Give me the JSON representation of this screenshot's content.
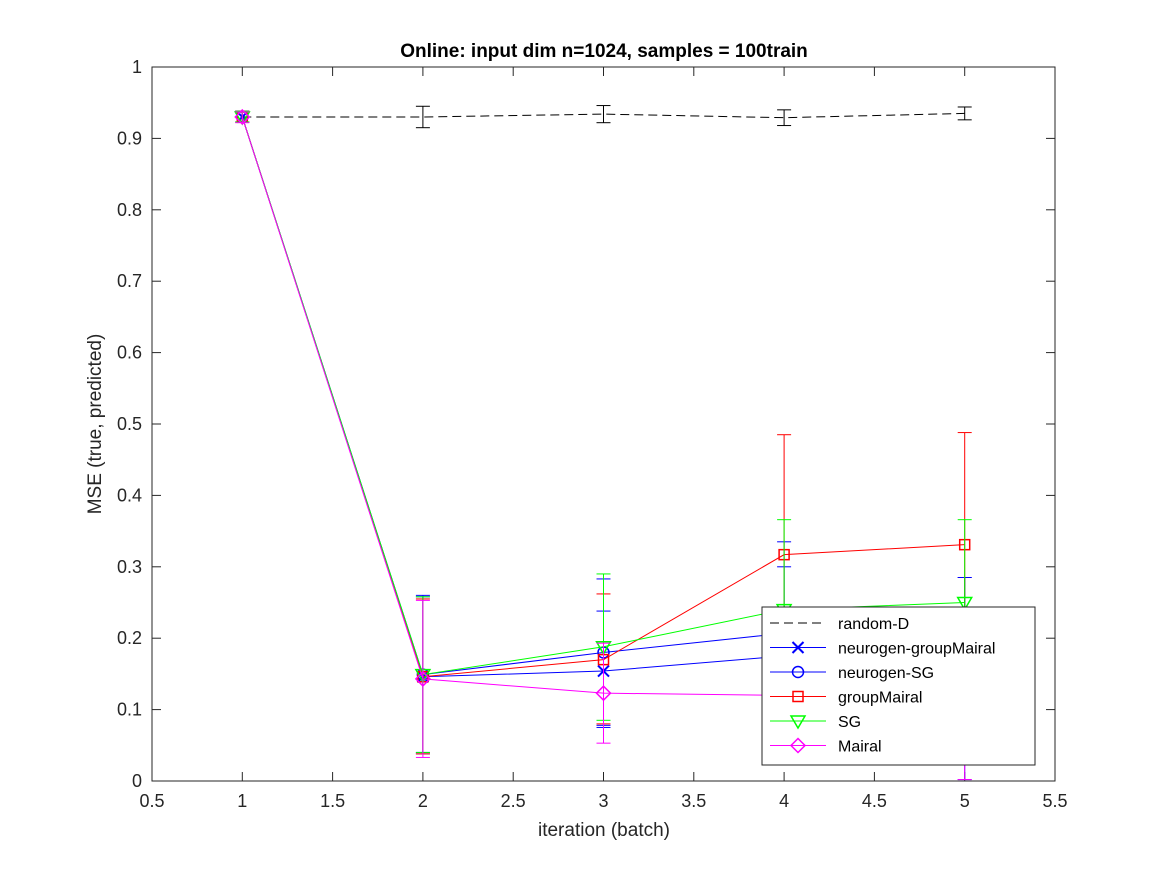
{
  "chart_data": {
    "type": "line",
    "title": "Online:  input dim n=1024, samples = 100train",
    "xlabel": "iteration (batch)",
    "ylabel": "MSE (true, predicted)",
    "xlim": [
      0.5,
      5.5
    ],
    "ylim": [
      0,
      1
    ],
    "xticks": [
      0.5,
      1,
      1.5,
      2,
      2.5,
      3,
      3.5,
      4,
      4.5,
      5,
      5.5
    ],
    "xtick_labels": [
      "0.5",
      "1",
      "1.5",
      "2",
      "2.5",
      "3",
      "3.5",
      "4",
      "4.5",
      "5",
      "5.5"
    ],
    "yticks": [
      0,
      0.1,
      0.2,
      0.3,
      0.4,
      0.5,
      0.6,
      0.7,
      0.8,
      0.9,
      1
    ],
    "ytick_labels": [
      "0",
      "0.1",
      "0.2",
      "0.3",
      "0.4",
      "0.5",
      "0.6",
      "0.7",
      "0.8",
      "0.9",
      "1"
    ],
    "grid": false,
    "legend_position": "bottom-right",
    "x": [
      1,
      2,
      3,
      4,
      5
    ],
    "series": [
      {
        "name": "random-D",
        "color": "#000000",
        "dash": true,
        "marker": "none",
        "values": [
          0.93,
          0.93,
          0.934,
          0.929,
          0.935
        ],
        "err_low": [
          0.923,
          0.915,
          0.922,
          0.918,
          0.926
        ],
        "err_high": [
          0.938,
          0.945,
          0.946,
          0.94,
          0.944
        ]
      },
      {
        "name": "neurogen-groupMairal",
        "color": "#0000ff",
        "dash": false,
        "marker": "x",
        "values": [
          0.93,
          0.146,
          0.154,
          0.175,
          0.182
        ],
        "err_low": [
          0.923,
          0.04,
          0.075,
          0.06,
          0.085
        ],
        "err_high": [
          0.938,
          0.258,
          0.238,
          0.3,
          0.285
        ]
      },
      {
        "name": "neurogen-SG",
        "color": "#0000ff",
        "dash": false,
        "marker": "circle",
        "values": [
          0.93,
          0.149,
          0.18,
          0.207,
          0.215
        ],
        "err_low": [
          0.923,
          0.038,
          0.078,
          0.075,
          0.002
        ],
        "err_high": [
          0.938,
          0.26,
          0.283,
          0.335,
          0.285
        ]
      },
      {
        "name": "groupMairal",
        "color": "#ff0000",
        "dash": false,
        "marker": "square",
        "values": [
          0.93,
          0.146,
          0.17,
          0.317,
          0.331
        ],
        "err_low": [
          0.923,
          0.038,
          0.08,
          0.15,
          0.175
        ],
        "err_high": [
          0.938,
          0.255,
          0.262,
          0.485,
          0.488
        ]
      },
      {
        "name": "SG",
        "color": "#00ff00",
        "dash": false,
        "marker": "triangle-down",
        "values": [
          0.93,
          0.149,
          0.188,
          0.24,
          0.25
        ],
        "err_low": [
          0.923,
          0.04,
          0.085,
          0.115,
          0.135
        ],
        "err_high": [
          0.938,
          0.258,
          0.29,
          0.366,
          0.366
        ]
      },
      {
        "name": "Mairal",
        "color": "#ff00ff",
        "dash": false,
        "marker": "diamond",
        "values": [
          0.93,
          0.143,
          0.123,
          0.12,
          0.118
        ],
        "err_low": [
          0.922,
          0.033,
          0.053,
          0.04,
          0.002
        ],
        "err_high": [
          0.937,
          0.253,
          0.193,
          0.2,
          0.235
        ]
      }
    ]
  }
}
